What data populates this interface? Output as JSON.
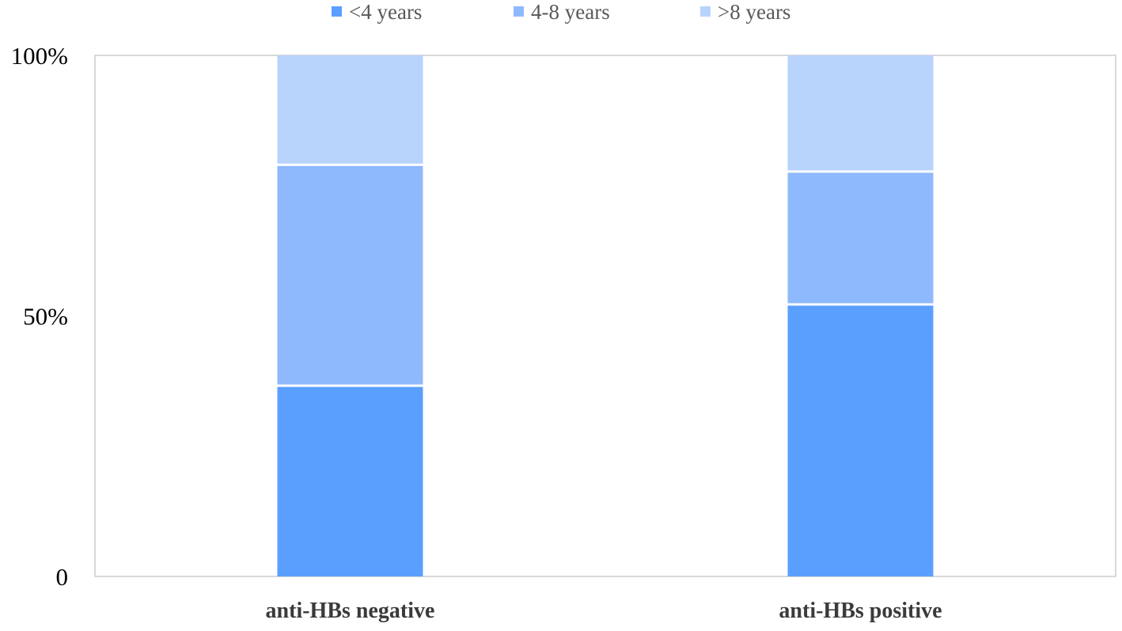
{
  "chart_data": {
    "type": "bar",
    "stacked": true,
    "percent_stacked": true,
    "categories": [
      "anti-HBs negative",
      "anti-HBs positive"
    ],
    "series": [
      {
        "name": "<4 years",
        "values": [
          36.6,
          52.2
        ],
        "color": "#5b9ffe"
      },
      {
        "name": "4-8 years",
        "values": [
          42.4,
          25.5
        ],
        "color": "#8fb9fd"
      },
      {
        "name": ">8 years",
        "values": [
          21.0,
          22.3
        ],
        "color": "#b8d3fc"
      }
    ],
    "title": "",
    "xlabel": "",
    "ylabel": "",
    "ylim": [
      0,
      100
    ],
    "y_ticks": [
      {
        "value": 0,
        "label": "0"
      },
      {
        "value": 50,
        "label": "50%"
      },
      {
        "value": 100,
        "label": "100%"
      }
    ],
    "legend_position": "top-center",
    "grid": false,
    "frame_color": "#d9d9d9"
  }
}
